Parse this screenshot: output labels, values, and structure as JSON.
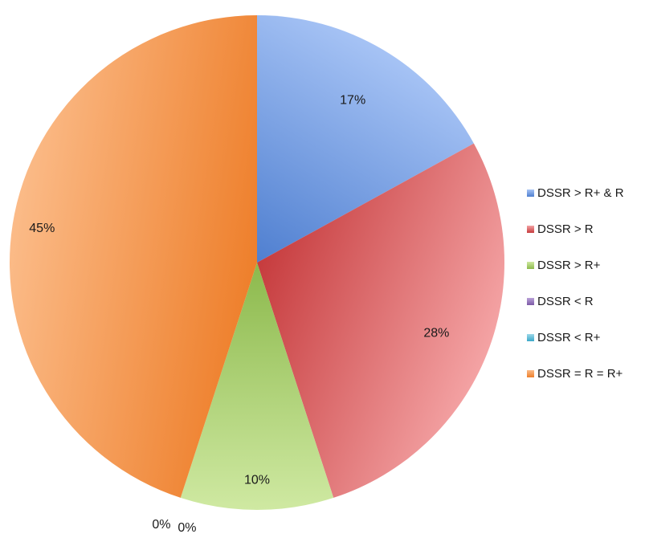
{
  "chart_data": {
    "type": "pie",
    "title": "",
    "start_angle_deg": 0,
    "direction": "clockwise",
    "slices": [
      {
        "label": "DSSR > R+ & R",
        "value": 17,
        "display": "17%",
        "color": "#4f7fd0",
        "color_light": "#a6c3f5"
      },
      {
        "label": "DSSR > R",
        "value": 28,
        "display": "28%",
        "color": "#c63b3d",
        "color_light": "#f4a3a4"
      },
      {
        "label": "DSSR > R+",
        "value": 10,
        "display": "10%",
        "color": "#8cb94c",
        "color_light": "#cfe9a2"
      },
      {
        "label": "DSSR < R",
        "value": 0,
        "display": "0%",
        "color": "#7c5aa6",
        "color_light": "#b9a2d8"
      },
      {
        "label": "DSSR < R+",
        "value": 0,
        "display": "0%",
        "color": "#3aa8c8",
        "color_light": "#9dd9ea"
      },
      {
        "label": "DSSR = R = R+",
        "value": 45,
        "display": "45%",
        "color": "#ee7f2b",
        "color_light": "#fbbb88"
      }
    ],
    "legend_position": "right"
  }
}
